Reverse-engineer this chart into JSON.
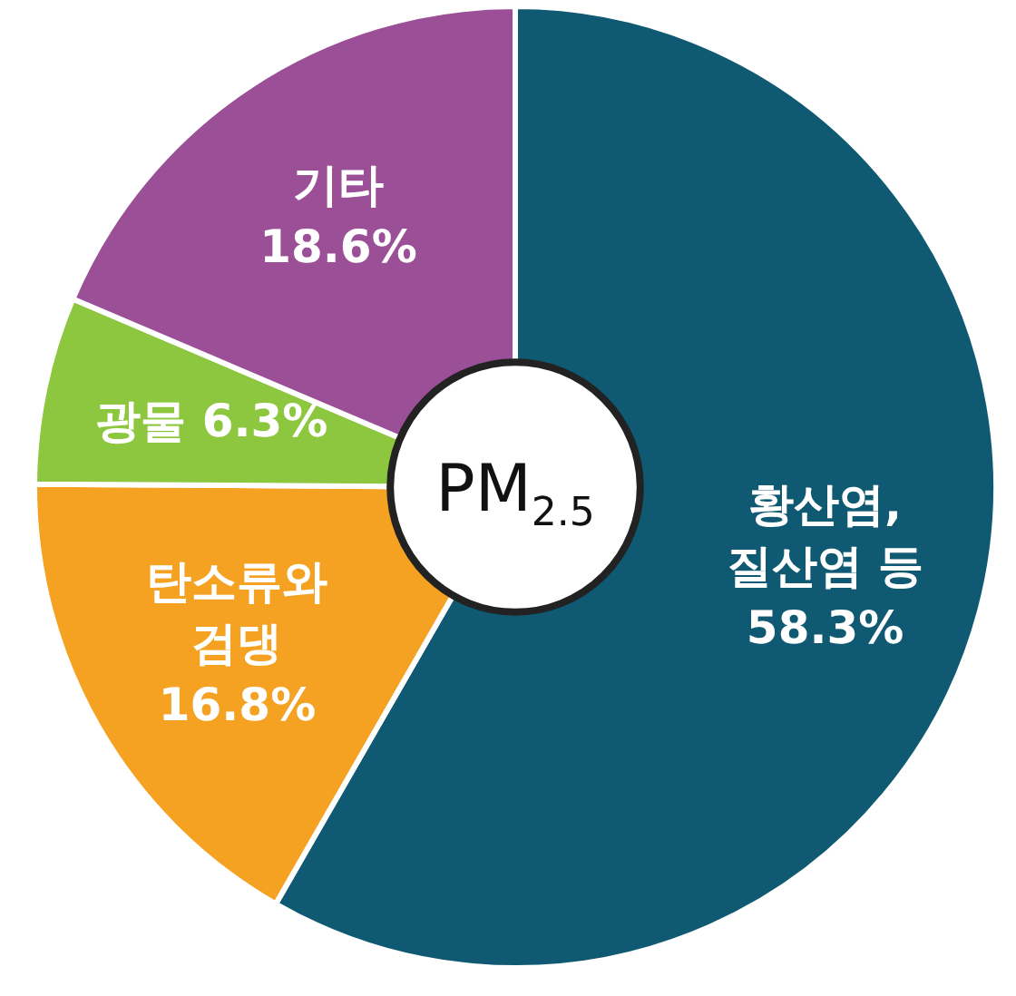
{
  "chart_data": {
    "type": "donut",
    "title": "PM$_{2.5}$",
    "categories": [
      "황산염,\n질산염 등",
      "탄소류와\n검댕",
      "광물",
      "기타"
    ],
    "values": [
      58.3,
      16.8,
      6.3,
      18.6
    ],
    "value_labels": [
      "58.3%",
      "16.8%",
      "6.3%",
      "18.6%"
    ],
    "colors": [
      "#0f5a72",
      "#f5a121",
      "#8dc63f",
      "#9a4f97"
    ],
    "legend": false
  }
}
